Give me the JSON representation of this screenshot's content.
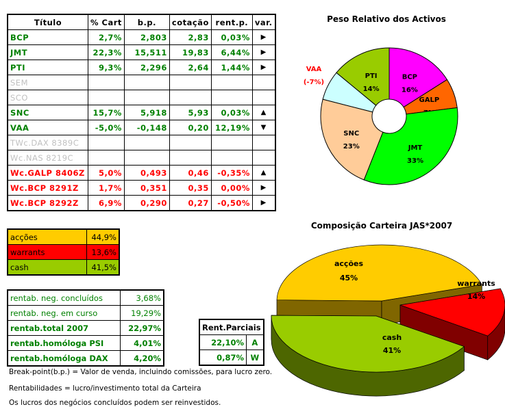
{
  "table": {
    "headers": [
      "Título",
      "% Cart",
      "b.p.",
      "cotação",
      "rent.p.",
      "var."
    ],
    "rows": [
      {
        "name": "BCP",
        "pct": "2,7%",
        "bp": "2,803",
        "cot": "2,83",
        "rent": "0,03%",
        "var": "▶",
        "style": "g"
      },
      {
        "name": "JMT",
        "pct": "22,3%",
        "bp": "15,511",
        "cot": "19,83",
        "rent": "6,44%",
        "var": "▶",
        "style": "g"
      },
      {
        "name": "PTI",
        "pct": "9,3%",
        "bp": "2,296",
        "cot": "2,64",
        "rent": "1,44%",
        "var": "▶",
        "style": "g"
      },
      {
        "name": "SEM",
        "pct": "",
        "bp": "",
        "cot": "",
        "rent": "",
        "var": "",
        "style": "x"
      },
      {
        "name": "SCO",
        "pct": "",
        "bp": "",
        "cot": "",
        "rent": "",
        "var": "",
        "style": "x"
      },
      {
        "name": "SNC",
        "pct": "15,7%",
        "bp": "5,918",
        "cot": "5,93",
        "rent": "0,03%",
        "var": "▲",
        "style": "g"
      },
      {
        "name": "VAA",
        "pct": "-5,0%",
        "bp": "-0,148",
        "cot": "0,20",
        "rent": "12,19%",
        "var": "▼",
        "style": "g"
      },
      {
        "name": "TWc.DAX 8389C",
        "pct": "",
        "bp": "",
        "cot": "",
        "rent": "",
        "var": "",
        "style": "x"
      },
      {
        "name": "Wc.NAS 8219C",
        "pct": "",
        "bp": "",
        "cot": "",
        "rent": "",
        "var": "",
        "style": "x"
      },
      {
        "name": "Wc.GALP 8406Z",
        "pct": "5,0%",
        "bp": "0,493",
        "cot": "0,46",
        "rent": "-0,35%",
        "var": "▲",
        "style": "r"
      },
      {
        "name": "Wc.BCP 8291Z",
        "pct": "1,7%",
        "bp": "0,351",
        "cot": "0,35",
        "rent": "0,00%",
        "var": "▶",
        "style": "r"
      },
      {
        "name": "Wc.BCP 8292Z",
        "pct": "6,9%",
        "bp": "0,290",
        "cot": "0,27",
        "rent": "-0,50%",
        "var": "▶",
        "style": "r"
      }
    ]
  },
  "summary": [
    {
      "label": "acções",
      "value": "44,9%",
      "color": "#ffcc00"
    },
    {
      "label": "warrants",
      "value": "13,6%",
      "color": "#ff0000"
    },
    {
      "label": "cash",
      "value": "41,5%",
      "color": "#99cc00"
    }
  ],
  "rentab": [
    {
      "label": "rentab. neg. concluídos",
      "value": "3,68%",
      "bold": false
    },
    {
      "label": "rentab. neg. em curso",
      "value": "19,29%",
      "bold": false
    },
    {
      "label": "rentab.total 2007",
      "value": "22,97%",
      "bold": true
    },
    {
      "label": "rentab.homóloga PSI",
      "value": "4,01%",
      "bold": true
    },
    {
      "label": "rentab.homóloga DAX",
      "value": "4,20%",
      "bold": true
    }
  ],
  "rent_parciais": {
    "title": "Rent.Parciais",
    "rows": [
      {
        "value": "22,10%",
        "tag": "A"
      },
      {
        "value": "0,87%",
        "tag": "W"
      }
    ]
  },
  "notes": [
    "Break-point(b.p.) = Valor de venda, incluindo comissões, para lucro zero.",
    "Rentabilidades = lucro/investimento total da Carteira",
    "Os lucros dos negócios concluídos podem ser reinvestidos."
  ],
  "chart_data": [
    {
      "type": "pie",
      "title": "Peso Relativo dos Activos",
      "donut": true,
      "categories": [
        "BCP",
        "GALP",
        "JMT",
        "SNC",
        "VAA",
        "PTI"
      ],
      "values": [
        16,
        7,
        33,
        23,
        7,
        14
      ],
      "labels": [
        "16%",
        "7%",
        "33%",
        "23%",
        "(-7%)",
        "14%"
      ],
      "colors": [
        "#ff00ff",
        "#ff6600",
        "#00ff00",
        "#ffcc99",
        "#ccffff",
        "#99cc00"
      ]
    },
    {
      "type": "pie",
      "title": "Composição Carteira JAS*2007",
      "3d": true,
      "categories": [
        "acções",
        "warrants",
        "cash"
      ],
      "values": [
        45,
        14,
        41
      ],
      "labels": [
        "45%",
        "14%",
        "41%"
      ],
      "colors": [
        "#ffcc00",
        "#ff0000",
        "#99cc00"
      ]
    }
  ]
}
